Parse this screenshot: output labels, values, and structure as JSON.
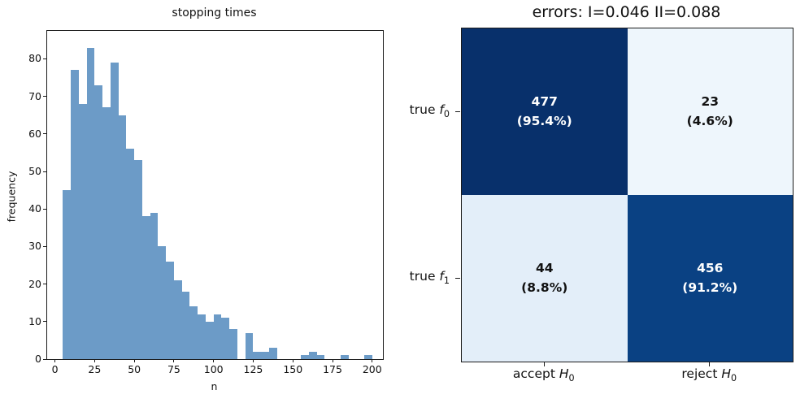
{
  "chart_data": [
    {
      "type": "bar",
      "title": "stopping times",
      "xlabel": "n",
      "ylabel": "frequency",
      "bin_start": 5,
      "bin_width": 5,
      "frequencies": [
        45,
        77,
        68,
        83,
        73,
        67,
        79,
        65,
        56,
        53,
        38,
        39,
        30,
        26,
        21,
        18,
        14,
        12,
        10,
        12,
        11,
        8,
        0,
        7,
        2,
        2,
        3,
        0,
        0,
        0,
        1,
        2,
        1,
        0,
        0,
        1,
        0,
        0,
        1
      ],
      "xticks": [
        0,
        25,
        50,
        75,
        100,
        125,
        150,
        175,
        200
      ],
      "yticks": [
        0,
        10,
        20,
        30,
        40,
        50,
        60,
        70,
        80
      ],
      "xlim": [
        -5,
        207
      ],
      "ylim": [
        0,
        87.5
      ],
      "bar_color": "#6c9bc7",
      "grid": false,
      "legend": "none"
    },
    {
      "type": "heatmap",
      "title": "errors: I=0.046 II=0.088",
      "type_I_error": 0.046,
      "type_II_error": 0.088,
      "row_labels": [
        {
          "text": "true ",
          "var": "f",
          "sub": "0"
        },
        {
          "text": "true ",
          "var": "f",
          "sub": "1"
        }
      ],
      "col_labels": [
        {
          "text": "accept ",
          "var": "H",
          "sub": "0"
        },
        {
          "text": "reject ",
          "var": "H",
          "sub": "0"
        }
      ],
      "cells": [
        [
          {
            "count": "477",
            "pct": "(95.4%)",
            "bg": "#08306b",
            "fg": "#ffffff"
          },
          {
            "count": "23",
            "pct": "(4.6%)",
            "bg": "#eef6fc",
            "fg": "#111111"
          }
        ],
        [
          {
            "count": "44",
            "pct": "(8.8%)",
            "bg": "#e3eef9",
            "fg": "#111111"
          },
          {
            "count": "456",
            "pct": "(91.2%)",
            "bg": "#0a4183",
            "fg": "#ffffff"
          }
        ]
      ]
    }
  ]
}
